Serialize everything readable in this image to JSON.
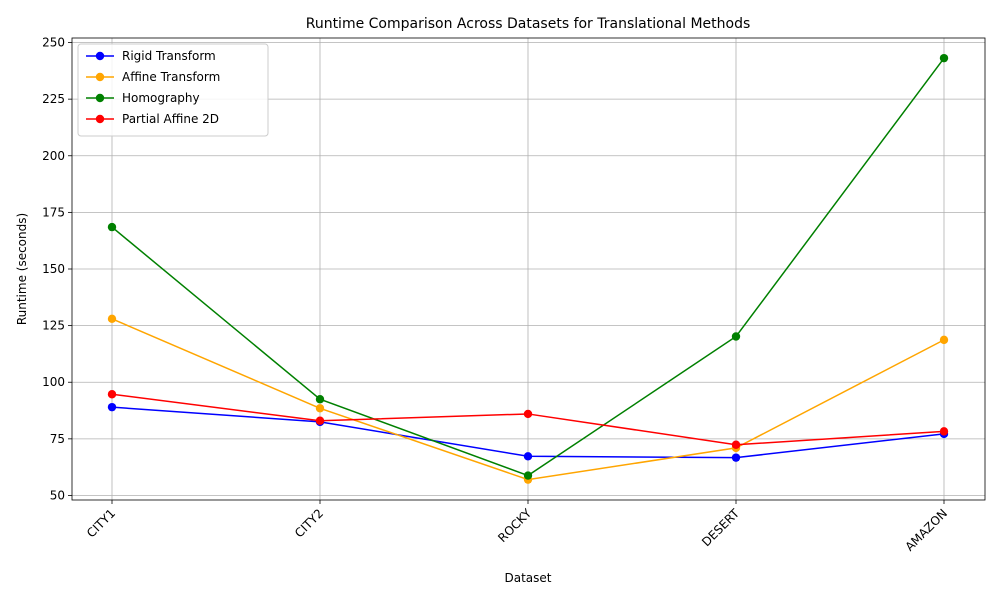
{
  "chart_data": {
    "type": "line",
    "title": "Runtime Comparison Across Datasets for Translational Methods",
    "xlabel": "Dataset",
    "ylabel": "Runtime (seconds)",
    "categories": [
      "CITY1",
      "CITY2",
      "ROCKY",
      "DESERT",
      "AMAZON"
    ],
    "ylim": [
      48,
      252
    ],
    "yticks": [
      50,
      75,
      100,
      125,
      150,
      175,
      200,
      225,
      250
    ],
    "grid": true,
    "legend_position": "top-left",
    "series": [
      {
        "name": "Rigid Transform",
        "color": "#0000ff",
        "values": [
          89.0,
          82.5,
          67.3,
          66.7,
          77.2
        ]
      },
      {
        "name": "Affine Transform",
        "color": "#ffa500",
        "values": [
          128.0,
          88.5,
          57.0,
          71.0,
          118.7
        ]
      },
      {
        "name": "Homography",
        "color": "#008000",
        "values": [
          168.5,
          92.5,
          58.8,
          120.2,
          243.1
        ]
      },
      {
        "name": "Partial Affine 2D",
        "color": "#ff0000",
        "values": [
          94.7,
          83.0,
          86.0,
          72.4,
          78.3
        ]
      }
    ]
  }
}
